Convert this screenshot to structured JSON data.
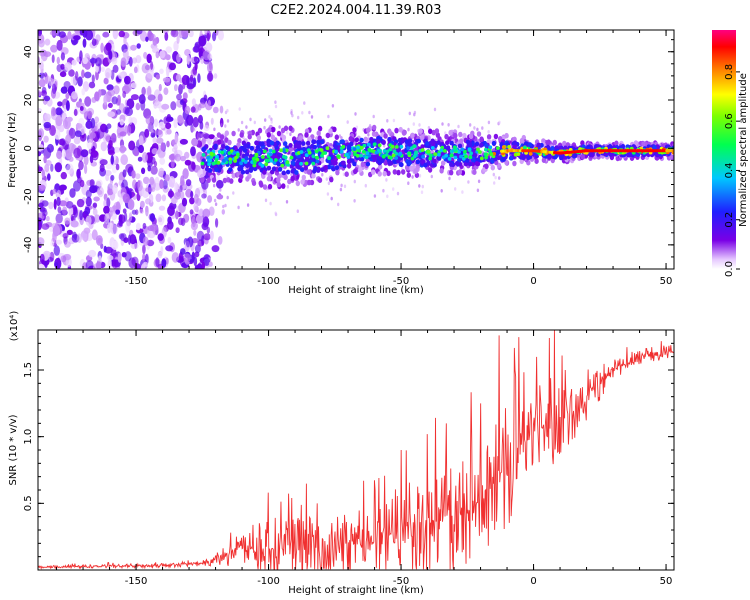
{
  "figure": {
    "title": "C2E2.2024.004.11.39.R03"
  },
  "chart_data": [
    {
      "type": "heatmap",
      "xlabel": "Height of straight line (km)",
      "ylabel": "Frequency (Hz)",
      "xlim": [
        -187,
        53
      ],
      "ylim": [
        -50,
        49
      ],
      "x_ticks": [
        "-150",
        "-100",
        "-50",
        "0",
        "50"
      ],
      "y_ticks": [
        "-40",
        "-20",
        "0",
        "20",
        "40"
      ],
      "colorbar": {
        "label": "Normalized spectral amplitude",
        "range": [
          0,
          0.97
        ],
        "ticks": [
          "0.0",
          "0.2",
          "0.4",
          "0.6",
          "0.8"
        ],
        "colormap": "rainbow (purple-blue-cyan-green-yellow-red-magenta)"
      },
      "features": {
        "noise_region_x": [
          -187,
          -122
        ],
        "signal_band_x": [
          -125,
          53
        ],
        "signal_center_freq_hz": [
          [
            -120,
            -4
          ],
          [
            -100,
            -4
          ],
          [
            -80,
            -3
          ],
          [
            -60,
            -1
          ],
          [
            -40,
            -2
          ],
          [
            -20,
            -2
          ],
          [
            -10,
            -1
          ],
          [
            0,
            -1
          ],
          [
            10,
            -2
          ],
          [
            20,
            -1
          ],
          [
            30,
            -1
          ],
          [
            40,
            -1
          ],
          [
            52,
            -1
          ]
        ],
        "signal_half_width_hz": [
          [
            -120,
            6
          ],
          [
            -100,
            8
          ],
          [
            -80,
            7
          ],
          [
            -60,
            6
          ],
          [
            -40,
            6
          ],
          [
            -20,
            5
          ],
          [
            0,
            3
          ],
          [
            20,
            2
          ],
          [
            52,
            2
          ]
        ]
      }
    },
    {
      "type": "line",
      "xlabel": "Height of straight line (km)",
      "ylabel": "SNR (10 * v/v)",
      "y_multiplier": "(x10⁴)",
      "xlim": [
        -187,
        53
      ],
      "ylim": [
        0,
        18000
      ],
      "x_ticks": [
        "-150",
        "-100",
        "-50",
        "0",
        "50"
      ],
      "y_ticks": [
        "0.5",
        "1.0",
        "1.5"
      ],
      "series": [
        {
          "color": "#f03030",
          "baseline": [
            [
              -187,
              200
            ],
            [
              -140,
              350
            ],
            [
              -125,
              500
            ],
            [
              -110,
              1800
            ],
            [
              -100,
              1600
            ],
            [
              -80,
              1700
            ],
            [
              -60,
              2200
            ],
            [
              -50,
              3000
            ],
            [
              -40,
              3500
            ],
            [
              -30,
              4000
            ],
            [
              -20,
              5000
            ],
            [
              -10,
              8000
            ],
            [
              0,
              10500
            ],
            [
              10,
              11000
            ],
            [
              20,
              13000
            ],
            [
              30,
              15000
            ],
            [
              40,
              16000
            ],
            [
              53,
              16400
            ]
          ],
          "spread": [
            [
              -187,
              100
            ],
            [
              -125,
              200
            ],
            [
              -110,
              1500
            ],
            [
              -100,
              2200
            ],
            [
              -60,
              2800
            ],
            [
              -40,
              4000
            ],
            [
              -20,
              6000
            ],
            [
              -10,
              5000
            ],
            [
              0,
              3500
            ],
            [
              15,
              2500
            ],
            [
              30,
              800
            ],
            [
              53,
              500
            ]
          ],
          "peaks": [
            [
              -100,
              5800
            ],
            [
              -50,
              9000
            ],
            [
              -33,
              11000
            ],
            [
              -20,
              12500
            ],
            [
              -13,
              17600
            ],
            [
              -7,
              15000
            ],
            [
              6,
              17400
            ],
            [
              8,
              18000
            ],
            [
              12,
              15000
            ]
          ]
        }
      ]
    }
  ]
}
